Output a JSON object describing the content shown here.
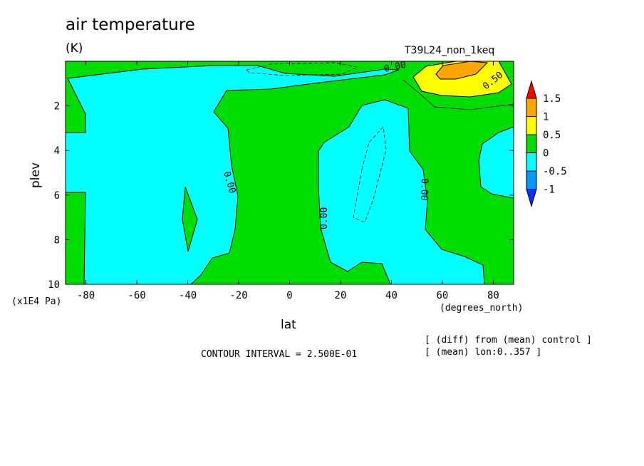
{
  "chart_data": {
    "type": "contour",
    "title": "air temperature",
    "units": "(K)",
    "run_label": "T39L24_non_1keq",
    "xlabel": "lat",
    "x_units": "(degrees_north)",
    "ylabel": "plev",
    "y_units": "(x1E4 Pa)",
    "xlim": [
      -88,
      88
    ],
    "ylim": [
      10,
      0
    ],
    "x_ticks": [
      -80,
      -60,
      -40,
      -20,
      0,
      20,
      40,
      60,
      80
    ],
    "x_tick_labels": [
      "-80",
      "-60",
      "-40",
      "-20",
      "0",
      "20",
      "40",
      "60",
      "80"
    ],
    "y_ticks": [
      2,
      4,
      6,
      8,
      10
    ],
    "y_tick_labels": [
      "2",
      "4",
      "6",
      "8",
      "10"
    ],
    "contour_interval": "CONTOUR INTERVAL = 2.500E-01",
    "contour_labels": [
      "0.00",
      "0.00",
      "0.00",
      "0.00",
      "0.50"
    ],
    "colorbar": {
      "levels": [
        "1.5",
        "1",
        "0.5",
        "0",
        "-0.5",
        "-1"
      ],
      "bins": [
        {
          "range": "> 1.5",
          "color": "#ff0000"
        },
        {
          "range": "1 to 1.5",
          "color": "#ffa500"
        },
        {
          "range": "0.5 to 1",
          "color": "#ffff00"
        },
        {
          "range": "0 to 0.5",
          "color": "#00dd00"
        },
        {
          "range": "-0.5 to 0",
          "color": "#00ffff"
        },
        {
          "range": "-1 to -0.5",
          "color": "#0099ff"
        },
        {
          "range": "< -1",
          "color": "#0033ff"
        }
      ]
    },
    "regions": [
      {
        "sign": "negative",
        "description": "cold anomaly, southern high latitudes",
        "lat_range": [
          -85,
          -38
        ],
        "plev_range": [
          0.3,
          10
        ]
      },
      {
        "sign": "positive",
        "description": "small warm patch",
        "lat_range": [
          -44,
          -38
        ],
        "plev_range": [
          5.6,
          8.5
        ]
      },
      {
        "sign": "negative",
        "description": "cold anomaly, northern subtropics",
        "lat_range": [
          12,
          52
        ],
        "plev_range": [
          1.5,
          10
        ]
      },
      {
        "sign": "negative",
        "description": "cold anomaly, northern polar lower troposphere",
        "lat_range": [
          75,
          88
        ],
        "plev_range": [
          2.2,
          6.5
        ]
      },
      {
        "sign": "positive",
        "description": "warm maximum, northern high latitude upper level",
        "lat_range": [
          50,
          88
        ],
        "plev_range": [
          0,
          1.8
        ],
        "max_value": 1.0
      }
    ],
    "notes": [
      "[ (diff) from (mean) control ]",
      "[ (mean) lon:0..357 ]"
    ]
  }
}
